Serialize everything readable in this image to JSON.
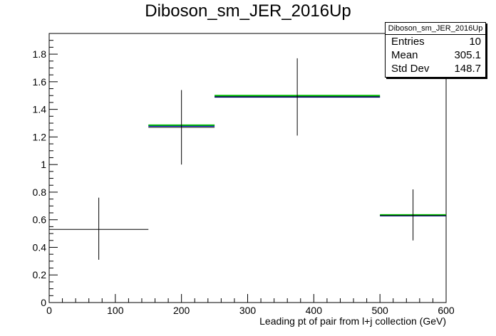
{
  "chart_data": {
    "type": "scatter",
    "title": "Diboson_sm_JER_2016Up",
    "xlabel": "Leading pt of pair from l+j collection (GeV)",
    "ylabel": "",
    "xlim": [
      0,
      600
    ],
    "ylim": [
      0,
      1.95
    ],
    "xticks": [
      "0",
      "100",
      "200",
      "300",
      "400",
      "500",
      "600"
    ],
    "yticks": [
      "0",
      "0.2",
      "0.4",
      "0.6",
      "0.8",
      "1",
      "1.2",
      "1.4",
      "1.6",
      "1.8"
    ],
    "grid": false,
    "series": [
      {
        "color": "#000000",
        "points": [
          {
            "x": 75,
            "y": 0.53,
            "xlow": 0,
            "xhigh": 150,
            "ylow": 0.31,
            "yhigh": 0.76
          },
          {
            "x": 200,
            "y": 1.27,
            "xlow": 150,
            "xhigh": 250,
            "ylow": 1.0,
            "yhigh": 1.54
          },
          {
            "x": 375,
            "y": 1.49,
            "xlow": 250,
            "xhigh": 500,
            "ylow": 1.21,
            "yhigh": 1.77
          },
          {
            "x": 550,
            "y": 0.63,
            "xlow": 500,
            "xhigh": 600,
            "ylow": 0.45,
            "yhigh": 0.82
          }
        ]
      }
    ],
    "reference_lines": [
      {
        "color": "#0000cc",
        "segments": [
          [
            150,
            250,
            1.28
          ],
          [
            250,
            500,
            1.49
          ],
          [
            500,
            600,
            0.63
          ]
        ]
      },
      {
        "color": "#00bb00",
        "segments": [
          [
            150,
            250,
            1.285
          ],
          [
            250,
            500,
            1.5
          ],
          [
            500,
            600,
            0.635
          ]
        ]
      }
    ]
  },
  "stats": {
    "header": "Diboson_sm_JER_2016Up",
    "entries_label": "Entries",
    "entries_value": "10",
    "mean_label": "Mean",
    "mean_value": "305.1",
    "stddev_label": "Std Dev",
    "stddev_value": "148.7"
  }
}
